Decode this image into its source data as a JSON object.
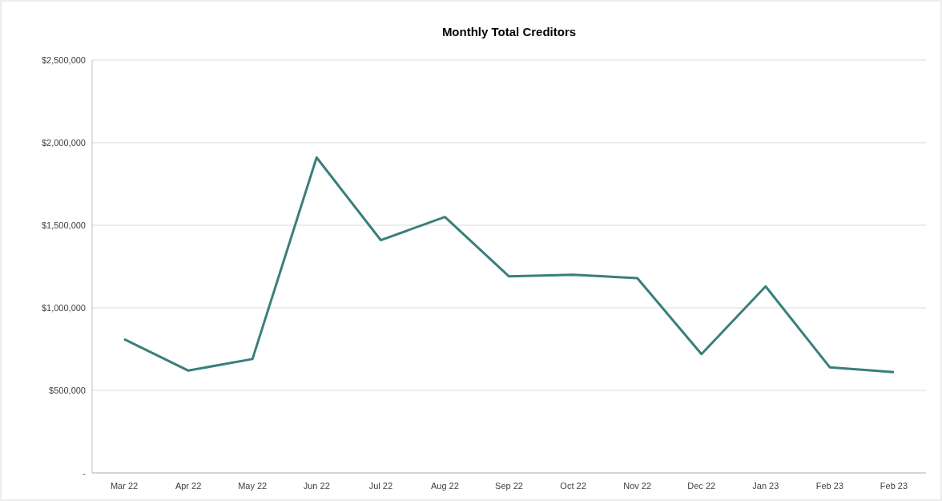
{
  "chart_data": {
    "type": "line",
    "title": "Monthly Total Creditors",
    "categories": [
      "Mar 22",
      "Apr 22",
      "May 22",
      "Jun 22",
      "Jul 22",
      "Aug 22",
      "Sep 22",
      "Oct 22",
      "Nov 22",
      "Dec 22",
      "Jan 23",
      "Feb 23",
      "Feb 23"
    ],
    "series": [
      {
        "color": "#3a7f7c",
        "values": [
          810000,
          620000,
          690000,
          1910000,
          1410000,
          1550000,
          1190000,
          1200000,
          1180000,
          720000,
          1130000,
          640000,
          610000
        ]
      }
    ],
    "ylim": [
      0,
      2500000
    ],
    "yticks": [
      {
        "value": 0,
        "label": "-"
      },
      {
        "value": 500000,
        "label": "$500,000"
      },
      {
        "value": 1000000,
        "label": "$1,000,000"
      },
      {
        "value": 1500000,
        "label": "$1,500,000"
      },
      {
        "value": 2000000,
        "label": "$2,000,000"
      },
      {
        "value": 2500000,
        "label": "$2,500,000"
      }
    ],
    "grid": "y",
    "marker": "none",
    "line_style": "solid"
  }
}
